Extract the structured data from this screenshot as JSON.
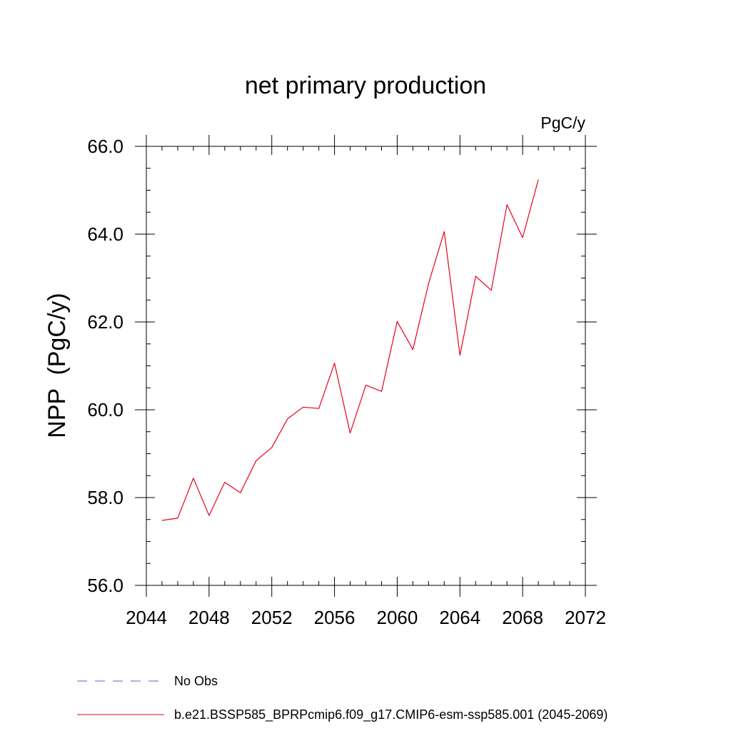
{
  "chart_data": {
    "type": "line",
    "title": "net primary production",
    "units": "PgC/y",
    "ylabel": "NPP  (PgC/y)",
    "xlabel": "",
    "xlim": [
      2044,
      2072
    ],
    "ylim": [
      56.0,
      66.0
    ],
    "x_ticks": [
      2044,
      2048,
      2052,
      2056,
      2060,
      2064,
      2068,
      2072
    ],
    "x_tick_labels": [
      "2044",
      "2048",
      "2052",
      "2056",
      "2060",
      "2064",
      "2068",
      "2072"
    ],
    "y_ticks": [
      56.0,
      58.0,
      60.0,
      62.0,
      64.0,
      66.0
    ],
    "y_tick_labels": [
      "56.0",
      "58.0",
      "60.0",
      "62.0",
      "64.0",
      "66.0"
    ],
    "x_minor_step": 1,
    "y_minor_step": 0.5,
    "grid": false,
    "legend_position": "bottom",
    "legend": [
      {
        "label": "No Obs",
        "color": "#6a5acd",
        "style": "dashed"
      },
      {
        "label": "b.e21.BSSP585_BPRPcmip6.f09_g17.CMIP6-esm-ssp585.001 (2045-2069)",
        "color": "#e8001c",
        "style": "solid"
      }
    ],
    "series": [
      {
        "name": "b.e21.BSSP585_BPRPcmip6.f09_g17.CMIP6-esm-ssp585.001 (2045-2069)",
        "color": "#e8001c",
        "x": [
          2045,
          2046,
          2047,
          2048,
          2049,
          2050,
          2051,
          2052,
          2053,
          2054,
          2055,
          2056,
          2057,
          2058,
          2059,
          2060,
          2061,
          2062,
          2063,
          2064,
          2065,
          2066,
          2067,
          2068,
          2069
        ],
        "y": [
          57.48,
          57.53,
          58.44,
          57.59,
          58.35,
          58.11,
          58.84,
          59.14,
          59.79,
          60.06,
          60.03,
          61.06,
          59.47,
          60.56,
          60.42,
          62.01,
          61.37,
          62.88,
          64.06,
          61.24,
          63.04,
          62.72,
          64.67,
          63.92,
          65.24
        ]
      }
    ]
  }
}
